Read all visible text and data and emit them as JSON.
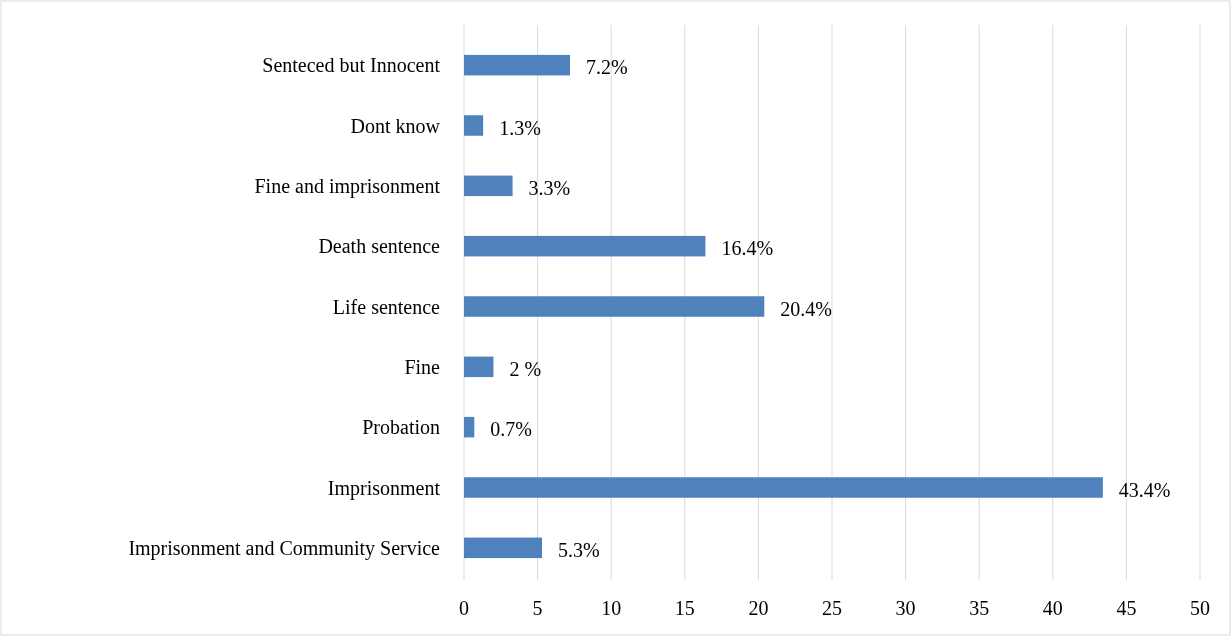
{
  "chart_data": {
    "type": "bar",
    "orientation": "horizontal",
    "categories": [
      "Senteced but Innocent",
      "Dont know",
      "Fine and imprisonment",
      "Death sentence",
      "Life sentence",
      "Fine",
      "Probation",
      "Imprisonment",
      "Imprisonment and Community Service"
    ],
    "values": [
      7.2,
      1.3,
      3.3,
      16.4,
      20.4,
      2,
      0.7,
      43.4,
      5.3
    ],
    "value_labels": [
      "7.2%",
      "1.3%",
      "3.3%",
      "16.4%",
      "20.4%",
      "2 %",
      "0.7%",
      "43.4%",
      "5.3%"
    ],
    "color": "#4f81bd",
    "xlim": [
      0,
      50
    ],
    "xticks": [
      0,
      5,
      10,
      15,
      20,
      25,
      30,
      35,
      40,
      45,
      50
    ],
    "grid": "x"
  }
}
